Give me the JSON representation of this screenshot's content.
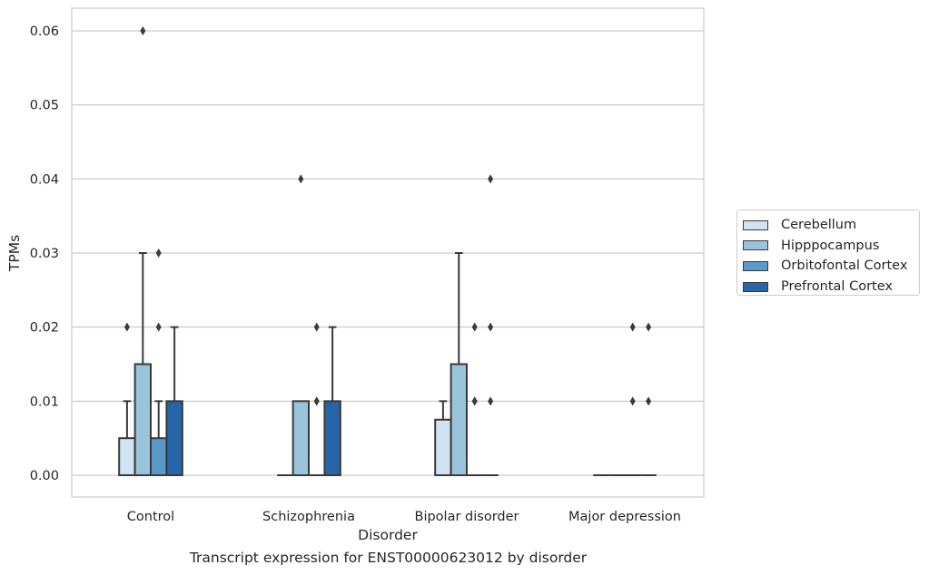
{
  "chart_data": {
    "type": "box",
    "xlabel": "Disorder",
    "ylabel": "TPMs",
    "caption": "Transcript expression for ENST00000623012 by disorder",
    "categories": [
      "Control",
      "Schizophrenia",
      "Bipolar disorder",
      "Major depression"
    ],
    "ylim": [
      -0.003,
      0.063
    ],
    "yticks": [
      0.0,
      0.01,
      0.02,
      0.03,
      0.04,
      0.05,
      0.06
    ],
    "ytick_labels": [
      "0.00",
      "0.01",
      "0.02",
      "0.03",
      "0.04",
      "0.05",
      "0.06"
    ],
    "grid": true,
    "legend_position": "right",
    "series": [
      {
        "name": "Cerebellum",
        "color": "#d1e2f2",
        "boxes": [
          {
            "q1": 0.0,
            "median": 0.0,
            "q3": 0.005,
            "whislo": 0.0,
            "whishi": 0.01,
            "fliers": [
              0.02
            ]
          },
          {
            "q1": 0.0,
            "median": 0.0,
            "q3": 0.0,
            "whislo": 0.0,
            "whishi": 0.0,
            "fliers": []
          },
          {
            "q1": 0.0,
            "median": 0.0,
            "q3": 0.0075,
            "whislo": 0.0,
            "whishi": 0.01,
            "fliers": []
          },
          {
            "q1": 0.0,
            "median": 0.0,
            "q3": 0.0,
            "whislo": 0.0,
            "whishi": 0.0,
            "fliers": []
          }
        ]
      },
      {
        "name": "Hipppocampus",
        "color": "#9ac3dc",
        "boxes": [
          {
            "q1": 0.0,
            "median": 0.0,
            "q3": 0.015,
            "whislo": 0.0,
            "whishi": 0.03,
            "fliers": [
              0.06
            ]
          },
          {
            "q1": 0.0,
            "median": 0.0,
            "q3": 0.01,
            "whislo": 0.0,
            "whishi": 0.01,
            "fliers": [
              0.04
            ]
          },
          {
            "q1": 0.0,
            "median": 0.0,
            "q3": 0.015,
            "whislo": 0.0,
            "whishi": 0.03,
            "fliers": []
          },
          {
            "q1": 0.0,
            "median": 0.0,
            "q3": 0.0,
            "whislo": 0.0,
            "whishi": 0.0,
            "fliers": []
          }
        ]
      },
      {
        "name": "Orbitofontal Cortex",
        "color": "#5a9ac8",
        "boxes": [
          {
            "q1": 0.0,
            "median": 0.0,
            "q3": 0.005,
            "whislo": 0.0,
            "whishi": 0.01,
            "fliers": [
              0.02,
              0.03
            ]
          },
          {
            "q1": 0.0,
            "median": 0.0,
            "q3": 0.0,
            "whislo": 0.0,
            "whishi": 0.0,
            "fliers": [
              0.01,
              0.01,
              0.02
            ]
          },
          {
            "q1": 0.0,
            "median": 0.0,
            "q3": 0.0,
            "whislo": 0.0,
            "whishi": 0.0,
            "fliers": [
              0.01,
              0.01,
              0.02
            ]
          },
          {
            "q1": 0.0,
            "median": 0.0,
            "q3": 0.0,
            "whislo": 0.0,
            "whishi": 0.0,
            "fliers": [
              0.01,
              0.02
            ]
          }
        ]
      },
      {
        "name": "Prefrontal Cortex",
        "color": "#2565a8",
        "boxes": [
          {
            "q1": 0.0,
            "median": 0.0,
            "q3": 0.01,
            "whislo": 0.0,
            "whishi": 0.02,
            "fliers": []
          },
          {
            "q1": 0.0,
            "median": 0.0,
            "q3": 0.01,
            "whislo": 0.0,
            "whishi": 0.02,
            "fliers": []
          },
          {
            "q1": 0.0,
            "median": 0.0,
            "q3": 0.0,
            "whislo": 0.0,
            "whishi": 0.0,
            "fliers": [
              0.01,
              0.02,
              0.04
            ]
          },
          {
            "q1": 0.0,
            "median": 0.0,
            "q3": 0.0,
            "whislo": 0.0,
            "whishi": 0.0,
            "fliers": [
              0.01,
              0.02
            ]
          }
        ]
      }
    ]
  }
}
